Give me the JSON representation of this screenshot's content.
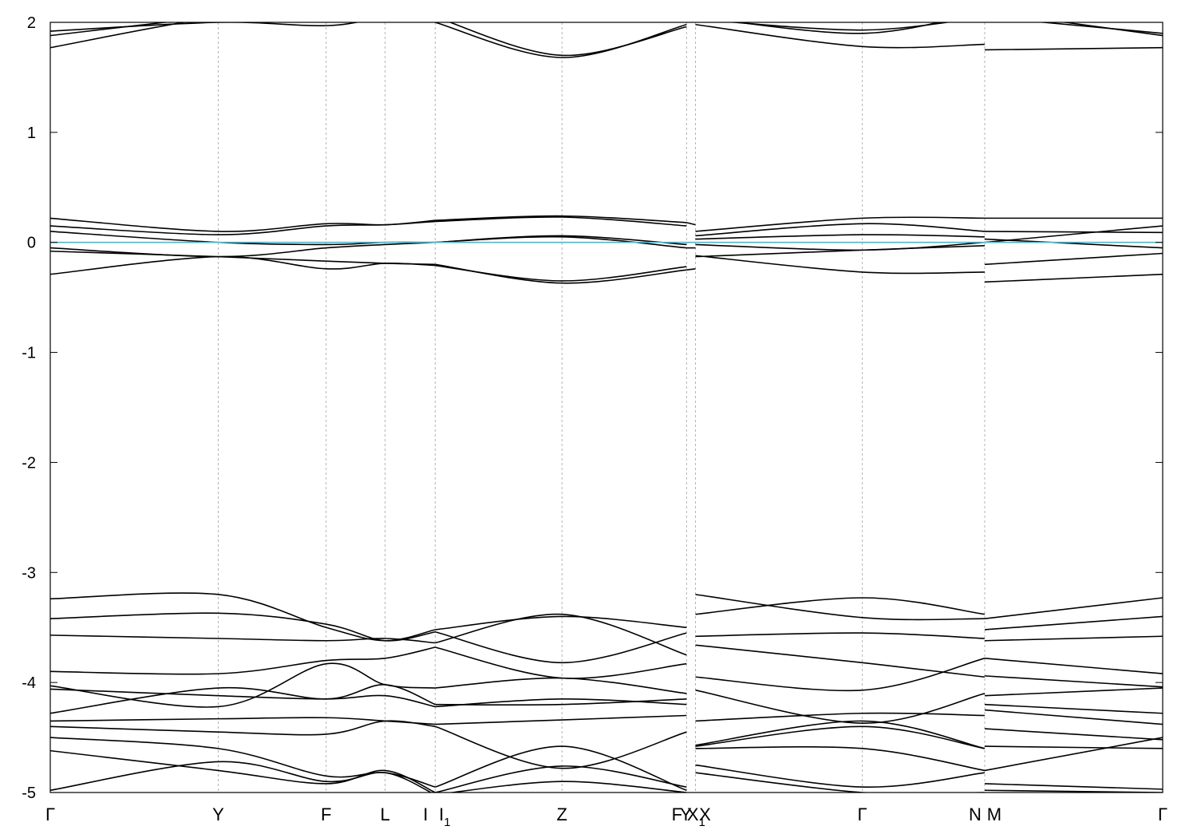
{
  "chart_data": {
    "type": "line",
    "title": "",
    "xlabel": "",
    "ylabel": "",
    "ylim": [
      -5,
      2
    ],
    "y_ticks": [
      "2",
      "1",
      "0",
      "-1",
      "-2",
      "-3",
      "-4",
      "-5"
    ],
    "y_tick_values": [
      2,
      1,
      0,
      -1,
      -2,
      -3,
      -4,
      -5
    ],
    "grid": "dashed vertical lines at high-symmetry k-points",
    "reference_line": {
      "y": 0,
      "color": "#56b4c8"
    },
    "line_color": "#000000",
    "k_points": [
      {
        "label": "Γ",
        "sub": "",
        "x": 0.0
      },
      {
        "label": "Y",
        "sub": "",
        "x": 1.51
      },
      {
        "label": "F",
        "sub": "",
        "x": 2.48
      },
      {
        "label": "L",
        "sub": "",
        "x": 3.01
      },
      {
        "label": "I",
        "sub": "",
        "x": 3.46
      },
      {
        "label": "I",
        "sub": "1",
        "x": 3.46
      },
      {
        "label": "Z",
        "sub": "",
        "x": 4.6
      },
      {
        "label": "F",
        "sub": "",
        "x": 5.72
      },
      {
        "label": "X",
        "sub": "1",
        "x": 5.72
      },
      {
        "label": "Y",
        "sub": "",
        "x": 5.8
      },
      {
        "label": "X",
        "sub": "",
        "x": 5.8
      },
      {
        "label": "Γ",
        "sub": "",
        "x": 7.3
      },
      {
        "label": "N",
        "sub": "",
        "x": 8.4
      },
      {
        "label": "M",
        "sub": "",
        "x": 8.4
      },
      {
        "label": "Γ",
        "sub": "",
        "x": 10.0
      }
    ],
    "xlim": [
      0,
      10.0
    ],
    "segments": [
      {
        "name": "Γ-Y-F-L-I",
        "x": [
          0.0,
          1.51,
          2.48,
          3.01,
          3.46
        ],
        "bands": [
          [
            1.77,
            2.05,
            2.1,
            2.1,
            2.1
          ],
          [
            1.88,
            2.05,
            2.1,
            2.1,
            2.1
          ],
          [
            1.92,
            2.0,
            1.97,
            2.05,
            2.1
          ],
          [
            0.22,
            0.1,
            0.17,
            0.16,
            0.2
          ],
          [
            0.15,
            0.07,
            0.15,
            0.16,
            0.19
          ],
          [
            0.1,
            0.0,
            -0.02,
            0.0,
            0.0
          ],
          [
            -0.05,
            -0.13,
            -0.05,
            -0.02,
            0.0
          ],
          [
            -0.08,
            -0.13,
            -0.17,
            -0.19,
            -0.2
          ],
          [
            -0.29,
            -0.13,
            -0.24,
            -0.19,
            -0.21
          ],
          [
            -3.24,
            -3.2,
            -3.5,
            -3.62,
            -3.52
          ],
          [
            -3.42,
            -3.37,
            -3.47,
            -3.62,
            -3.54
          ],
          [
            -3.57,
            -3.6,
            -3.62,
            -3.6,
            -3.64
          ],
          [
            -3.9,
            -3.92,
            -3.8,
            -3.78,
            -3.68
          ],
          [
            -4.03,
            -4.22,
            -3.83,
            -4.02,
            -4.05
          ],
          [
            -4.28,
            -4.05,
            -4.15,
            -4.02,
            -4.2
          ],
          [
            -4.06,
            -4.12,
            -4.15,
            -4.12,
            -4.22
          ],
          [
            -4.35,
            -4.33,
            -4.32,
            -4.35,
            -4.38
          ],
          [
            -4.4,
            -4.45,
            -4.47,
            -4.35,
            -4.4
          ],
          [
            -4.5,
            -4.6,
            -4.85,
            -4.82,
            -4.95
          ],
          [
            -4.62,
            -4.8,
            -4.92,
            -4.8,
            -5.0
          ],
          [
            -4.98,
            -4.72,
            -4.9,
            -4.82,
            -5.02
          ]
        ]
      },
      {
        "name": "I1-Z-F",
        "x": [
          3.46,
          4.6,
          5.72
        ],
        "bands": [
          [
            2.0,
            1.68,
            1.98
          ],
          [
            2.05,
            1.7,
            1.96
          ],
          [
            0.2,
            0.24,
            0.18
          ],
          [
            0.19,
            0.23,
            0.15
          ],
          [
            0.0,
            0.06,
            -0.02
          ],
          [
            0.0,
            0.05,
            -0.05
          ],
          [
            -0.2,
            -0.37,
            -0.25
          ],
          [
            -0.21,
            -0.35,
            -0.22
          ],
          [
            -3.52,
            -3.4,
            -3.5
          ],
          [
            -3.54,
            -3.82,
            -3.55
          ],
          [
            -3.64,
            -3.38,
            -3.75
          ],
          [
            -3.68,
            -3.96,
            -3.83
          ],
          [
            -4.05,
            -3.96,
            -4.1
          ],
          [
            -4.2,
            -4.2,
            -4.15
          ],
          [
            -4.22,
            -4.15,
            -4.2
          ],
          [
            -4.38,
            -4.34,
            -4.3
          ],
          [
            -4.4,
            -4.78,
            -4.45
          ],
          [
            -4.95,
            -4.58,
            -4.98
          ],
          [
            -5.0,
            -4.76,
            -4.95
          ],
          [
            -5.02,
            -4.9,
            -5.0
          ]
        ]
      },
      {
        "name": "X1",
        "x": [
          5.72,
          5.8
        ],
        "bands": [
          [
            0.18,
            0.16
          ],
          [
            -0.05,
            -0.05
          ],
          [
            -0.25,
            -0.24
          ]
        ]
      },
      {
        "name": "Y-X-Γ-N",
        "x": [
          5.8,
          7.3,
          8.4
        ],
        "bands": [
          [
            2.05,
            1.9,
            2.1
          ],
          [
            2.03,
            1.93,
            2.05
          ],
          [
            1.98,
            1.78,
            1.8
          ],
          [
            0.1,
            0.22,
            0.22
          ],
          [
            0.06,
            0.17,
            0.1
          ],
          [
            0.03,
            0.07,
            0.05
          ],
          [
            -0.02,
            -0.07,
            0.0
          ],
          [
            -0.13,
            -0.07,
            -0.03
          ],
          [
            -0.12,
            -0.27,
            -0.27
          ],
          [
            -3.2,
            -3.41,
            -3.42
          ],
          [
            -3.38,
            -3.23,
            -3.38
          ],
          [
            -3.58,
            -3.55,
            -3.6
          ],
          [
            -3.66,
            -3.82,
            -3.95
          ],
          [
            -3.95,
            -4.07,
            -3.78
          ],
          [
            -4.07,
            -4.37,
            -4.1
          ],
          [
            -4.35,
            -4.28,
            -4.3
          ],
          [
            -4.57,
            -4.35,
            -4.6
          ],
          [
            -4.58,
            -4.4,
            -4.6
          ],
          [
            -4.6,
            -4.6,
            -4.8
          ],
          [
            -4.75,
            -4.95,
            -4.82
          ],
          [
            -4.82,
            -5.0,
            -5.0
          ]
        ]
      },
      {
        "name": "M-Γ",
        "x": [
          8.4,
          10.0
        ],
        "bands": [
          [
            2.1,
            1.88
          ],
          [
            2.05,
            1.9
          ],
          [
            1.75,
            1.77
          ],
          [
            0.22,
            0.22
          ],
          [
            0.1,
            0.09
          ],
          [
            0.03,
            -0.05
          ],
          [
            0.0,
            0.15
          ],
          [
            -0.2,
            -0.1
          ],
          [
            -0.36,
            -0.29
          ],
          [
            -3.42,
            -3.23
          ],
          [
            -3.52,
            -3.4
          ],
          [
            -3.62,
            -3.58
          ],
          [
            -3.78,
            -3.92
          ],
          [
            -3.94,
            -4.04
          ],
          [
            -4.12,
            -4.05
          ],
          [
            -4.2,
            -4.28
          ],
          [
            -4.25,
            -4.38
          ],
          [
            -4.42,
            -4.52
          ],
          [
            -4.58,
            -4.6
          ],
          [
            -4.8,
            -4.5
          ],
          [
            -4.92,
            -4.97
          ],
          [
            -4.98,
            -5.0
          ]
        ]
      }
    ]
  }
}
